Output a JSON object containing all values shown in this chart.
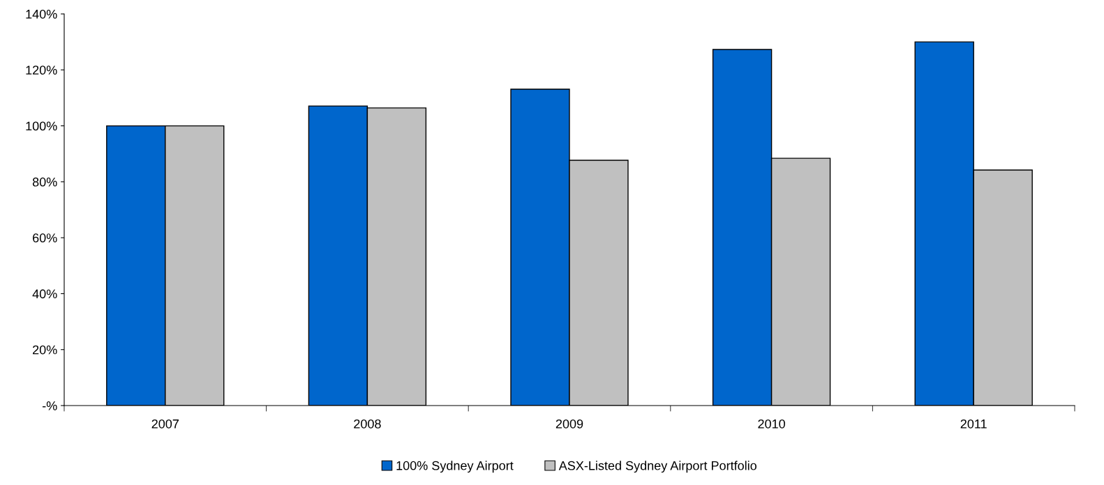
{
  "chart_data": {
    "type": "bar",
    "categories": [
      "2007",
      "2008",
      "2009",
      "2010",
      "2011"
    ],
    "series": [
      {
        "name": "100% Sydney Airport",
        "color": "#0066cc",
        "values": [
          100,
          107.1,
          113.1,
          127.3,
          130.0
        ]
      },
      {
        "name": "ASX-Listed Sydney Airport Portfolio",
        "color": "#c0c0c0",
        "values": [
          100,
          106.4,
          87.7,
          88.4,
          84.2
        ]
      }
    ],
    "ylim": [
      0,
      140
    ],
    "yticks": [
      {
        "value": 0,
        "label": "-%"
      },
      {
        "value": 20,
        "label": "20%"
      },
      {
        "value": 40,
        "label": "40%"
      },
      {
        "value": 60,
        "label": "60%"
      },
      {
        "value": 80,
        "label": "80%"
      },
      {
        "value": 100,
        "label": "100%"
      },
      {
        "value": 120,
        "label": "120%"
      },
      {
        "value": 140,
        "label": "140%"
      }
    ],
    "grid": false,
    "legend": "bottom"
  }
}
